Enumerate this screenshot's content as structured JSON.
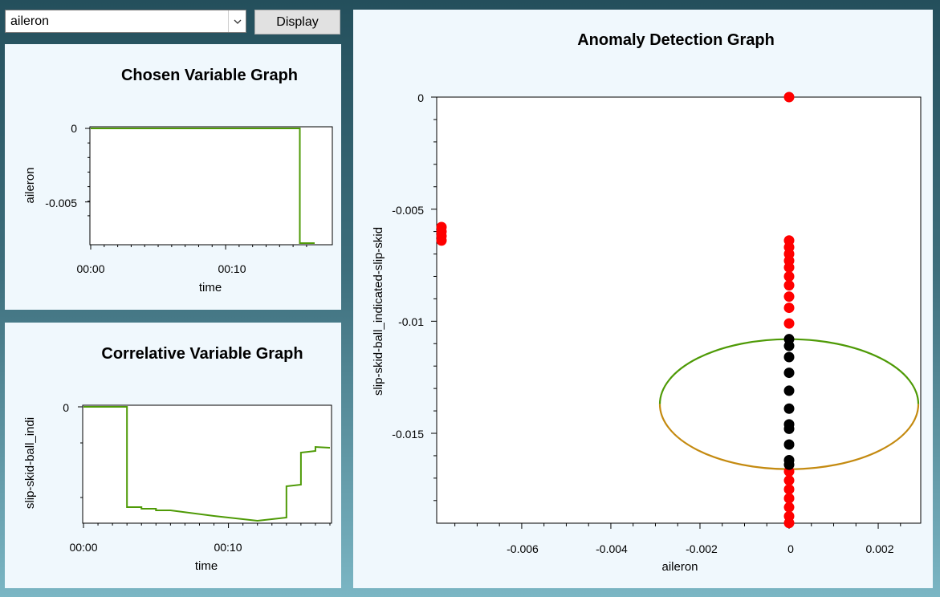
{
  "variable_selector": {
    "selected": "aileron"
  },
  "display_button": {
    "label": "Display"
  },
  "chosen_graph": {
    "title": "Chosen Variable Graph",
    "xlabel": "time",
    "ylabel": "aileron",
    "x_ticks": [
      "00:00",
      "00:10"
    ],
    "y_ticks": [
      "0",
      "-0.005"
    ]
  },
  "correlative_graph": {
    "title": "Correlative Variable Graph",
    "xlabel": "time",
    "ylabel": "slip-skid-ball_indi",
    "x_ticks": [
      "00:00",
      "00:10"
    ],
    "y_ticks": [
      "0"
    ]
  },
  "anomaly_graph": {
    "title": "Anomaly Detection Graph",
    "xlabel": "aileron",
    "ylabel": "slip-skid-ball_indicated-slip-skid",
    "x_ticks": [
      "-0.006",
      "-0.004",
      "-0.002",
      "0",
      "0.002"
    ],
    "y_ticks": [
      "0",
      "-0.005",
      "-0.01",
      "-0.015"
    ]
  },
  "chart_data": [
    {
      "type": "line",
      "title": "Chosen Variable Graph",
      "xlabel": "time",
      "ylabel": "aileron",
      "series": [
        {
          "x": [
            0,
            15.5,
            15.5,
            16.6
          ],
          "y": [
            0,
            0,
            -0.0078,
            -0.0078
          ]
        }
      ],
      "xlim": [
        0,
        16.6
      ],
      "ylim": [
        -0.0078,
        0
      ],
      "color": "#4e9a06"
    },
    {
      "type": "line",
      "title": "Correlative Variable Graph",
      "xlabel": "time",
      "ylabel": "slip-skid-ball_indi",
      "series": [
        {
          "x": [
            0,
            3,
            3,
            4,
            4,
            5,
            5,
            6,
            9,
            12,
            14,
            14,
            15,
            15,
            16,
            16,
            17
          ],
          "y": [
            0,
            0,
            -0.0125,
            -0.0125,
            -0.0127,
            -0.0127,
            -0.0129,
            -0.0129,
            -0.0136,
            -0.0142,
            -0.0138,
            -0.0099,
            -0.0097,
            -0.0057,
            -0.0055,
            -0.005,
            -0.0051
          ]
        }
      ],
      "xlim": [
        0,
        17
      ],
      "ylim": [
        -0.0145,
        0
      ],
      "color": "#4e9a06"
    },
    {
      "type": "scatter",
      "title": "Anomaly Detection Graph",
      "xlabel": "aileron",
      "ylabel": "slip-skid-ball_indicated-slip-skid",
      "xlim": [
        -0.0078,
        0.0029
      ],
      "ylim": [
        -0.019,
        0.0003
      ],
      "series": [
        {
          "color": "#ff0000",
          "points": [
            [
              0,
              0
            ],
            [
              -0.0078,
              -0.0058
            ],
            [
              -0.0078,
              -0.006
            ],
            [
              -0.0078,
              -0.0062
            ],
            [
              -0.0078,
              -0.0064
            ],
            [
              0,
              -0.0064
            ],
            [
              0,
              -0.0067
            ],
            [
              0,
              -0.007
            ],
            [
              0,
              -0.0073
            ],
            [
              0,
              -0.0076
            ],
            [
              0,
              -0.008
            ],
            [
              0,
              -0.0084
            ],
            [
              0,
              -0.0089
            ],
            [
              0,
              -0.0094
            ],
            [
              0,
              -0.0101
            ],
            [
              0,
              -0.0167
            ],
            [
              0,
              -0.0171
            ],
            [
              0,
              -0.0175
            ],
            [
              0,
              -0.0179
            ],
            [
              0,
              -0.0183
            ],
            [
              0,
              -0.0187
            ],
            [
              0,
              -0.019
            ]
          ]
        },
        {
          "color": "#000000",
          "points": [
            [
              0,
              -0.0108
            ],
            [
              0,
              -0.0111
            ],
            [
              0,
              -0.0116
            ],
            [
              0,
              -0.0123
            ],
            [
              0,
              -0.0131
            ],
            [
              0,
              -0.0139
            ],
            [
              0,
              -0.0146
            ],
            [
              0,
              -0.0148
            ],
            [
              0,
              -0.0155
            ],
            [
              0,
              -0.0162
            ],
            [
              0,
              -0.0164
            ]
          ]
        }
      ],
      "circle": {
        "center_x": 0,
        "center_y": -0.0137,
        "radius_x": 0.0029,
        "radius_y": 0.0029,
        "upper_color": "#4e9a06",
        "lower_color": "#c48a10"
      }
    }
  ]
}
